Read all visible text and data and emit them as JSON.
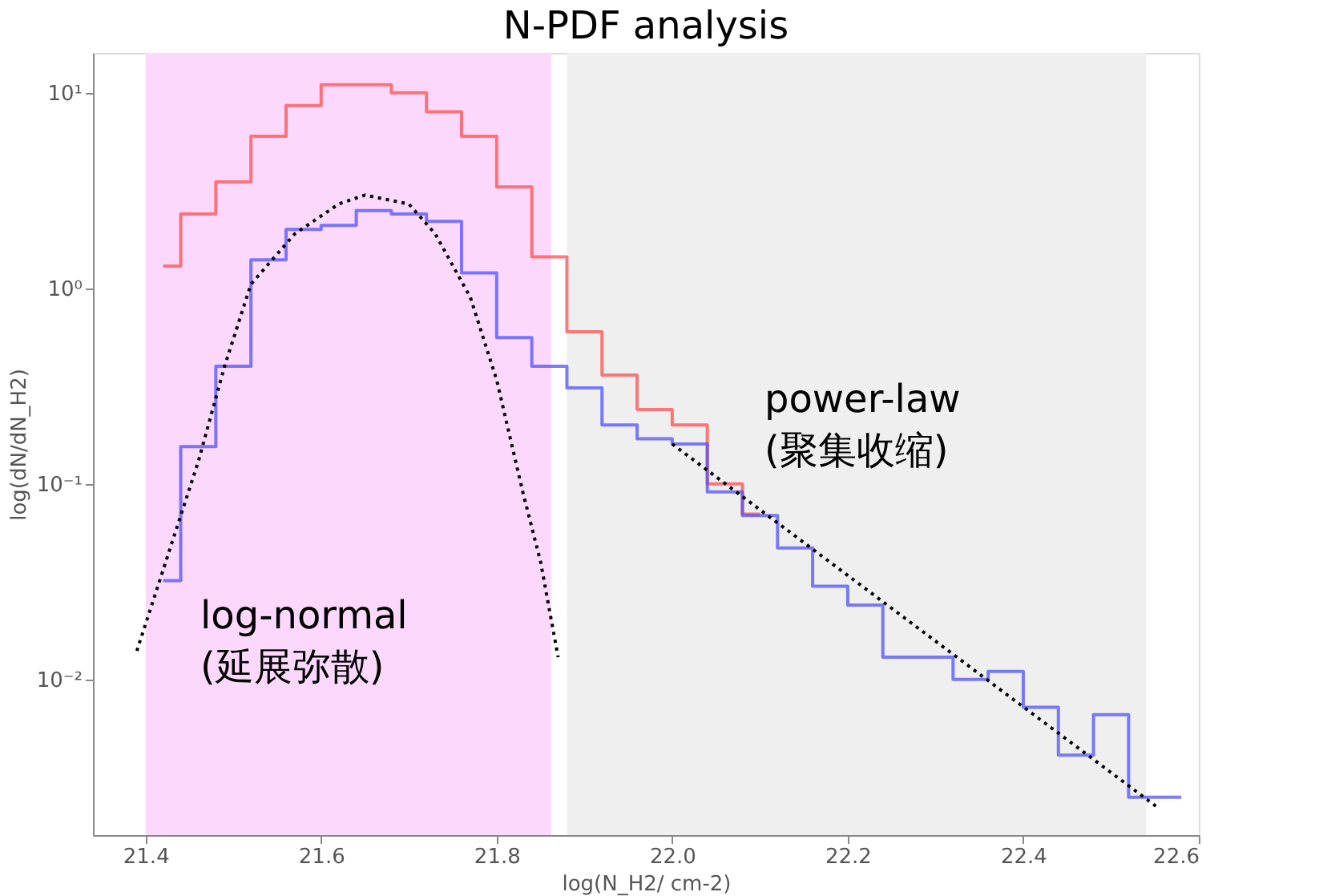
{
  "chart_data": {
    "type": "step",
    "title": "N-PDF analysis",
    "xlabel": "log(N_H2/ cm-2)",
    "ylabel": "log(dN/dN_H2)",
    "x": [
      21.42,
      21.46,
      21.5,
      21.54,
      21.58,
      21.62,
      21.66,
      21.7,
      21.74,
      21.78,
      21.82,
      21.86,
      21.9,
      21.94,
      21.98,
      22.02,
      22.06,
      22.1,
      22.14,
      22.18,
      22.22,
      22.26,
      22.3,
      22.34,
      22.38,
      22.42,
      22.46,
      22.5,
      22.54,
      22.58
    ],
    "series": [
      {
        "color": "#ff4d4d",
        "values": [
          1.3,
          2.4,
          3.5,
          6.0,
          8.6,
          11,
          11,
          10,
          8.0,
          6.0,
          3.3,
          1.45,
          0.6,
          0.36,
          0.24,
          0.2,
          0.1,
          0.07,
          null,
          null,
          null,
          null,
          null,
          null,
          null,
          null,
          null,
          null,
          null,
          null
        ]
      },
      {
        "color": "#5050ff",
        "values": [
          0.032,
          0.155,
          0.4,
          1.4,
          2.0,
          2.1,
          2.5,
          2.4,
          2.2,
          1.2,
          0.56,
          0.4,
          0.31,
          0.2,
          0.17,
          0.16,
          0.091,
          0.069,
          0.047,
          0.03,
          0.024,
          0.013,
          0.013,
          0.01,
          0.011,
          0.0072,
          0.0041,
          0.0066,
          0.0025,
          0.0025
        ]
      },
      {
        "type": "line",
        "color": "#000000",
        "line_style": "dotted",
        "x": [
          21.39,
          21.46,
          21.49,
          21.52,
          21.57,
          21.62,
          21.65,
          21.7,
          21.73,
          21.77,
          21.8,
          21.83,
          21.85,
          21.87
        ],
        "values": [
          0.014,
          0.13,
          0.4,
          1.05,
          1.9,
          2.7,
          3.0,
          2.7,
          1.9,
          0.9,
          0.34,
          0.09,
          0.04,
          0.013
        ]
      },
      {
        "type": "line",
        "color": "#000000",
        "line_style": "dotted",
        "x": [
          22.0,
          22.554
        ],
        "values": [
          0.16,
          0.0022
        ]
      }
    ],
    "log": true,
    "xlim": [
      21.34,
      22.6
    ],
    "xticks": [
      21.4,
      21.6,
      21.8,
      {
        "value": 22,
        "label": "22.0"
      },
      22.2,
      22.4,
      22.6
    ],
    "ylim": [
      0.0016,
      16
    ],
    "yticks": [
      {
        "value": 10,
        "label": "10¹"
      },
      {
        "value": 1,
        "label": "10⁰"
      },
      {
        "value": 0.1,
        "label": "10⁻¹"
      },
      {
        "value": 0.01,
        "label": "10⁻²"
      }
    ],
    "bands": [
      {
        "axis": "x",
        "from": 21.4,
        "to": 21.862,
        "color": "#fcd9fc"
      },
      {
        "axis": "x",
        "from": 21.88,
        "to": 22.54,
        "color": "#efefef"
      }
    ],
    "annotations": [
      "log-normal\n(延展弥散)",
      "power-law\n(聚集收缩)"
    ],
    "grid": false,
    "marker": "none"
  }
}
